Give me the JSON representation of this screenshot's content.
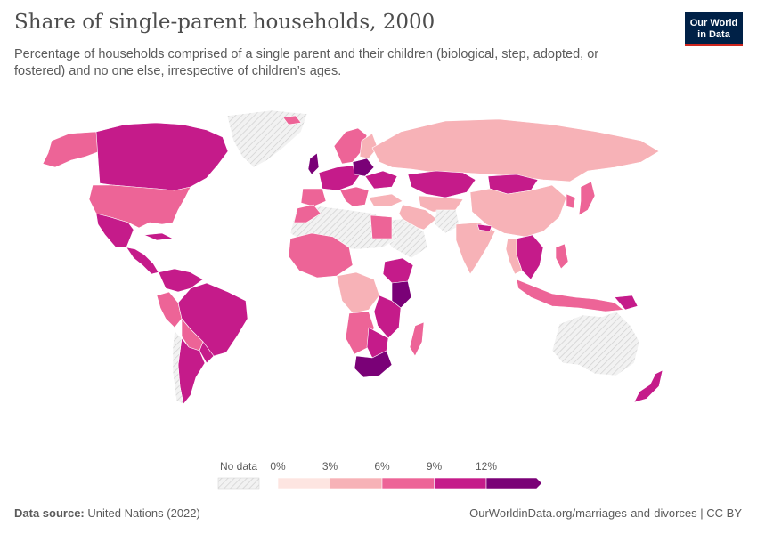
{
  "header": {
    "title": "Share of single-parent households, 2000",
    "subtitle": "Percentage of households comprised of a single parent and their children (biological, step, adopted, or fostered) and no one else, irrespective of children’s ages."
  },
  "logo": {
    "line1": "Our World",
    "line2": "in Data"
  },
  "legend": {
    "no_data_label": "No data",
    "bins": [
      {
        "label": "0%",
        "color": "#fde5e1"
      },
      {
        "label": "3%",
        "color": "#f7b2b7"
      },
      {
        "label": "6%",
        "color": "#ed6497"
      },
      {
        "label": "9%",
        "color": "#c51b8a"
      },
      {
        "label": "12%",
        "color": "#7a0177"
      }
    ]
  },
  "colors": {
    "no_data": "#e8e8e8",
    "bin0": "#fde5e1",
    "bin1": "#f7b2b7",
    "bin2": "#ed6497",
    "bin3": "#c51b8a",
    "bin4": "#7a0177"
  },
  "footer": {
    "source_label": "Data source:",
    "source_value": "United Nations (2022)",
    "url": "OurWorldinData.org/marriages-and-divorces | CC BY"
  }
}
